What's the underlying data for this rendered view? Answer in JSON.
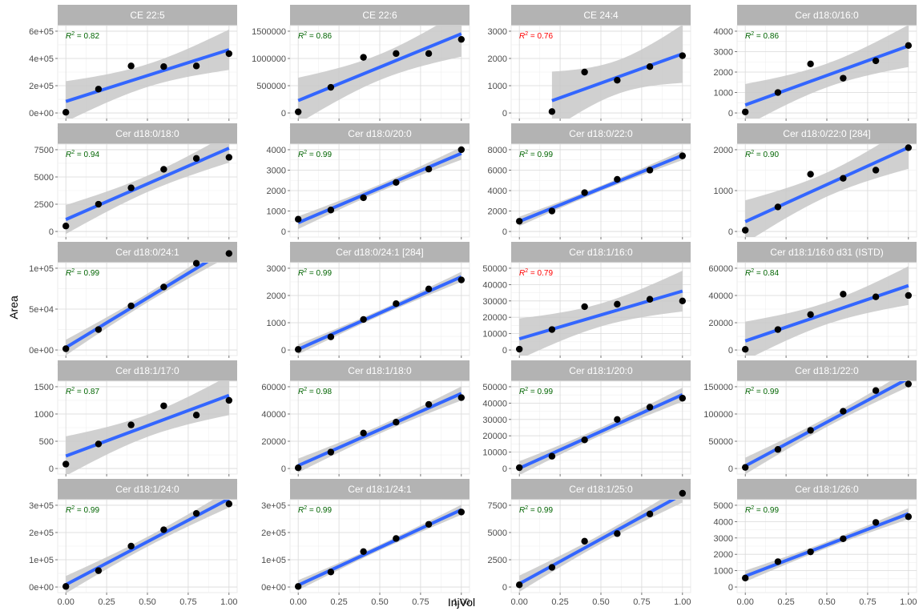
{
  "axis": {
    "xlabel": "InjVol",
    "ylabel": "Area",
    "x_ticks": [
      "0.00",
      "0.25",
      "0.50",
      "0.75",
      "1.00"
    ],
    "x_tick_values": [
      0,
      0.25,
      0.5,
      0.75,
      1.0
    ],
    "xlim": [
      -0.05,
      1.05
    ]
  },
  "colors": {
    "strip_bg": "#b3b3b3",
    "strip_text": "#ffffff",
    "panel_border": "#ebebeb",
    "grid_major": "#d9d9d9",
    "grid_minor": "#efefef",
    "fit_line": "#3366ff",
    "ci_band": "#c8c8c8",
    "point": "#000000",
    "r2_good": "#006400",
    "r2_bad": "#ff0000"
  },
  "chart_data": {
    "type": "scatter",
    "facet": "wrap 4 columns",
    "smooth": "linear regression with 95% confidence band",
    "panels": [
      {
        "title": "CE 22:5",
        "r2": "0.82",
        "r2_status": "good",
        "ylim": [
          0,
          600000
        ],
        "yticks": [
          0,
          200000,
          400000,
          600000
        ],
        "ytick_labels": [
          "0e+00",
          "2e+05",
          "4e+05",
          "6e+05"
        ],
        "x": [
          0,
          0.2,
          0.4,
          0.6,
          0.8,
          1.0
        ],
        "y": [
          5000,
          175000,
          345000,
          340000,
          345000,
          435000
        ]
      },
      {
        "title": "CE 22:6",
        "r2": "0.86",
        "r2_status": "good",
        "ylim": [
          0,
          1500000
        ],
        "yticks": [
          0,
          500000,
          1000000,
          1500000
        ],
        "ytick_labels": [
          "0",
          "500000",
          "1000000",
          "1500000"
        ],
        "x": [
          0,
          0.2,
          0.4,
          0.6,
          0.8,
          1.0
        ],
        "y": [
          20000,
          470000,
          1020000,
          1090000,
          1090000,
          1350000
        ]
      },
      {
        "title": "CE 24:4",
        "r2": "0.76",
        "r2_status": "bad",
        "ylim": [
          0,
          3000
        ],
        "yticks": [
          0,
          1000,
          2000,
          3000
        ],
        "ytick_labels": [
          "0",
          "1000",
          "2000",
          "3000"
        ],
        "x": [
          0.2,
          0.4,
          0.6,
          0.8,
          1.0
        ],
        "y": [
          50,
          1500,
          1200,
          1700,
          2100
        ]
      },
      {
        "title": "Cer d18:0/16:0",
        "r2": "0.86",
        "r2_status": "good",
        "ylim": [
          0,
          4000
        ],
        "yticks": [
          0,
          1000,
          2000,
          3000,
          4000
        ],
        "ytick_labels": [
          "0",
          "1000",
          "2000",
          "3000",
          "4000"
        ],
        "x": [
          0,
          0.2,
          0.4,
          0.6,
          0.8,
          1.0
        ],
        "y": [
          50,
          1000,
          2400,
          1700,
          2550,
          3300
        ]
      },
      {
        "title": "Cer d18:0/18:0",
        "r2": "0.94",
        "r2_status": "good",
        "ylim": [
          0,
          7500
        ],
        "yticks": [
          0,
          2500,
          5000,
          7500
        ],
        "ytick_labels": [
          "0",
          "2500",
          "5000",
          "7500"
        ],
        "x": [
          0,
          0.2,
          0.4,
          0.6,
          0.8,
          1.0
        ],
        "y": [
          500,
          2500,
          4000,
          5700,
          6700,
          6800
        ]
      },
      {
        "title": "Cer d18:0/20:0",
        "r2": "0.99",
        "r2_status": "good",
        "ylim": [
          0,
          4000
        ],
        "yticks": [
          0,
          1000,
          2000,
          3000,
          4000
        ],
        "ytick_labels": [
          "0",
          "1000",
          "2000",
          "3000",
          "4000"
        ],
        "x": [
          0,
          0.2,
          0.4,
          0.6,
          0.8,
          1.0
        ],
        "y": [
          600,
          1050,
          1650,
          2400,
          3050,
          4000
        ]
      },
      {
        "title": "Cer d18:0/22:0",
        "r2": "0.99",
        "r2_status": "good",
        "ylim": [
          0,
          8000
        ],
        "yticks": [
          0,
          2000,
          4000,
          6000,
          8000
        ],
        "ytick_labels": [
          "0",
          "2000",
          "4000",
          "6000",
          "8000"
        ],
        "x": [
          0,
          0.2,
          0.4,
          0.6,
          0.8,
          1.0
        ],
        "y": [
          1000,
          2000,
          3800,
          5100,
          6000,
          7400
        ]
      },
      {
        "title": "Cer d18:0/22:0 [284]",
        "r2": "0.90",
        "r2_status": "good",
        "ylim": [
          0,
          2000
        ],
        "yticks": [
          0,
          1000,
          2000
        ],
        "ytick_labels": [
          "0",
          "1000",
          "2000"
        ],
        "x": [
          0,
          0.2,
          0.4,
          0.6,
          0.8,
          1.0
        ],
        "y": [
          30,
          600,
          1400,
          1300,
          1500,
          2050
        ]
      },
      {
        "title": "Cer d18:0/24:1",
        "r2": "0.99",
        "r2_status": "good",
        "ylim": [
          0,
          100000
        ],
        "yticks": [
          0,
          50000,
          100000
        ],
        "ytick_labels": [
          "0e+00",
          "5e+04",
          "1e+05"
        ],
        "x": [
          0,
          0.2,
          0.4,
          0.6,
          0.8,
          1.0
        ],
        "y": [
          1500,
          25000,
          54000,
          77000,
          106000,
          118000
        ]
      },
      {
        "title": "Cer d18:0/24:1 [284]",
        "r2": "0.99",
        "r2_status": "good",
        "ylim": [
          0,
          3000
        ],
        "yticks": [
          0,
          1000,
          2000,
          3000
        ],
        "ytick_labels": [
          "0",
          "1000",
          "2000",
          "3000"
        ],
        "x": [
          0,
          0.2,
          0.4,
          0.6,
          0.8,
          1.0
        ],
        "y": [
          20,
          480,
          1120,
          1700,
          2240,
          2570
        ]
      },
      {
        "title": "Cer d18:1/16:0",
        "r2": "0.79",
        "r2_status": "bad",
        "ylim": [
          0,
          50000
        ],
        "yticks": [
          0,
          10000,
          20000,
          30000,
          40000,
          50000
        ],
        "ytick_labels": [
          "0",
          "10000",
          "20000",
          "30000",
          "40000",
          "50000"
        ],
        "x": [
          0,
          0.2,
          0.4,
          0.6,
          0.8,
          1.0
        ],
        "y": [
          500,
          12500,
          26500,
          28000,
          31000,
          30000
        ]
      },
      {
        "title": "Cer d18:1/16:0 d31 (ISTD)",
        "r2": "0.84",
        "r2_status": "good",
        "ylim": [
          0,
          60000
        ],
        "yticks": [
          0,
          20000,
          40000,
          60000
        ],
        "ytick_labels": [
          "0",
          "20000",
          "40000",
          "60000"
        ],
        "x": [
          0,
          0.2,
          0.4,
          0.6,
          0.8,
          1.0
        ],
        "y": [
          500,
          15000,
          26000,
          41000,
          39000,
          40000
        ]
      },
      {
        "title": "Cer d18:1/17:0",
        "r2": "0.87",
        "r2_status": "good",
        "ylim": [
          0,
          1500
        ],
        "yticks": [
          0,
          500,
          1000,
          1500
        ],
        "ytick_labels": [
          "0",
          "500",
          "1000",
          "1500"
        ],
        "x": [
          0,
          0.2,
          0.4,
          0.6,
          0.8,
          1.0
        ],
        "y": [
          80,
          450,
          800,
          1150,
          980,
          1250
        ]
      },
      {
        "title": "Cer d18:1/18:0",
        "r2": "0.98",
        "r2_status": "good",
        "ylim": [
          0,
          60000
        ],
        "yticks": [
          0,
          20000,
          40000,
          60000
        ],
        "ytick_labels": [
          "0",
          "20000",
          "40000",
          "60000"
        ],
        "x": [
          0,
          0.2,
          0.4,
          0.6,
          0.8,
          1.0
        ],
        "y": [
          500,
          12000,
          26000,
          34000,
          47000,
          52000
        ]
      },
      {
        "title": "Cer d18:1/20:0",
        "r2": "0.99",
        "r2_status": "good",
        "ylim": [
          0,
          50000
        ],
        "yticks": [
          0,
          10000,
          20000,
          30000,
          40000,
          50000
        ],
        "ytick_labels": [
          "0",
          "10000",
          "20000",
          "30000",
          "40000",
          "50000"
        ],
        "x": [
          0,
          0.2,
          0.4,
          0.6,
          0.8,
          1.0
        ],
        "y": [
          500,
          7500,
          17500,
          30000,
          37500,
          43000
        ]
      },
      {
        "title": "Cer d18:1/22:0",
        "r2": "0.99",
        "r2_status": "good",
        "ylim": [
          0,
          150000
        ],
        "yticks": [
          0,
          50000,
          100000,
          150000
        ],
        "ytick_labels": [
          "0",
          "50000",
          "100000",
          "150000"
        ],
        "x": [
          0,
          0.2,
          0.4,
          0.6,
          0.8,
          1.0
        ],
        "y": [
          2000,
          35000,
          70000,
          105000,
          143000,
          155000
        ]
      },
      {
        "title": "Cer d18:1/24:0",
        "r2": "0.99",
        "r2_status": "good",
        "ylim": [
          0,
          300000
        ],
        "yticks": [
          0,
          100000,
          200000,
          300000
        ],
        "ytick_labels": [
          "0e+00",
          "1e+05",
          "2e+05",
          "3e+05"
        ],
        "x": [
          0,
          0.2,
          0.4,
          0.6,
          0.8,
          1.0
        ],
        "y": [
          2000,
          60000,
          150000,
          210000,
          270000,
          305000
        ]
      },
      {
        "title": "Cer d18:1/24:1",
        "r2": "0.99",
        "r2_status": "good",
        "ylim": [
          0,
          300000
        ],
        "yticks": [
          0,
          100000,
          200000,
          300000
        ],
        "ytick_labels": [
          "0e+00",
          "1e+05",
          "2e+05",
          "3e+05"
        ],
        "x": [
          0,
          0.2,
          0.4,
          0.6,
          0.8,
          1.0
        ],
        "y": [
          2000,
          55000,
          130000,
          178000,
          230000,
          275000
        ]
      },
      {
        "title": "Cer d18:1/25:0",
        "r2": "0.99",
        "r2_status": "good",
        "ylim": [
          0,
          7500
        ],
        "yticks": [
          0,
          2500,
          5000,
          7500
        ],
        "ytick_labels": [
          "0",
          "2500",
          "5000",
          "7500"
        ],
        "x": [
          0,
          0.2,
          0.4,
          0.6,
          0.8,
          1.0
        ],
        "y": [
          200,
          1800,
          4200,
          4900,
          6700,
          8600
        ]
      },
      {
        "title": "Cer d18:1/26:0",
        "r2": "0.99",
        "r2_status": "good",
        "ylim": [
          0,
          5000
        ],
        "yticks": [
          0,
          1000,
          2000,
          3000,
          4000,
          5000
        ],
        "ytick_labels": [
          "0",
          "1000",
          "2000",
          "3000",
          "4000",
          "5000"
        ],
        "x": [
          0,
          0.2,
          0.4,
          0.6,
          0.8,
          1.0
        ],
        "y": [
          550,
          1550,
          2150,
          2950,
          3950,
          4300
        ]
      }
    ]
  }
}
